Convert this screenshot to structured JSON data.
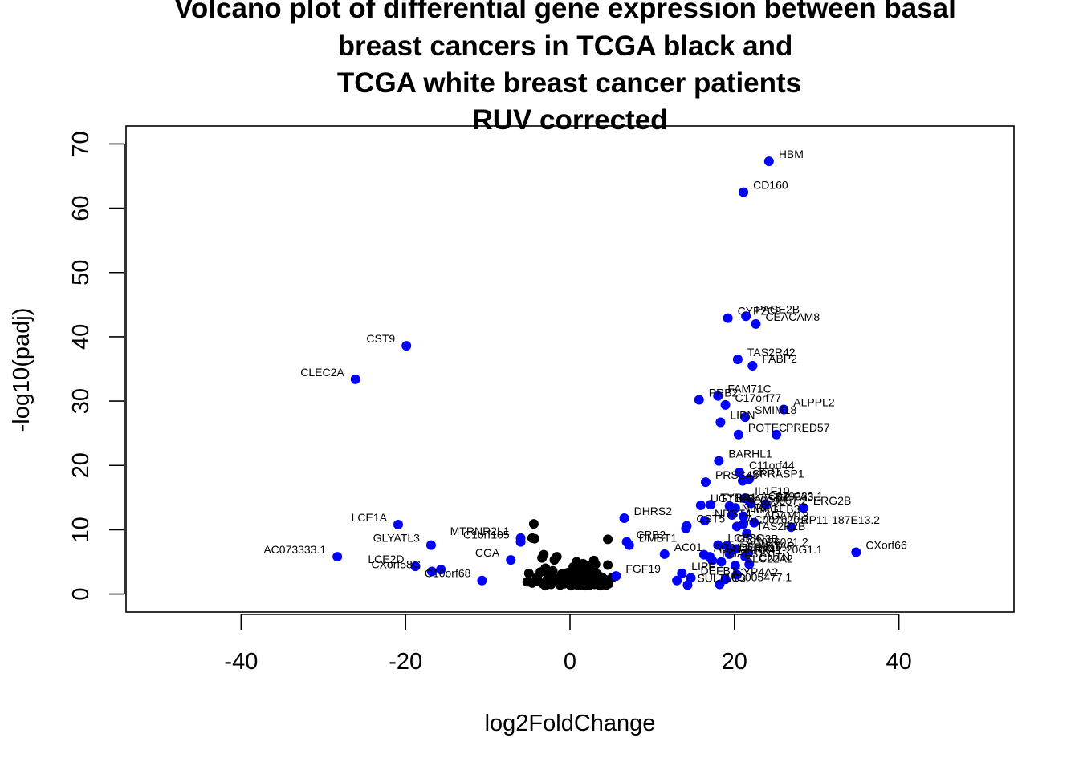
{
  "chart_data": {
    "type": "scatter",
    "title": [
      "Volcano plot of differential gene expression between basal",
      "breast cancers in TCGA black and",
      "TCGA white breast cancer patients",
      "RUV corrected"
    ],
    "xlabel": "log2FoldChange",
    "ylabel": "-log10(padj)",
    "xlim": [
      -54,
      54
    ],
    "ylim": [
      -2.8,
      72.8
    ],
    "xticks": [
      -40,
      -20,
      0,
      20,
      40
    ],
    "xtick_labels": [
      "-40",
      "-20",
      "0",
      "20",
      "40"
    ],
    "yticks": [
      0,
      10,
      20,
      30,
      40,
      50,
      60,
      70
    ],
    "ytick_labels": [
      "0",
      "10",
      "20",
      "30",
      "40",
      "50",
      "60",
      "70"
    ],
    "grid": false,
    "legend": "none",
    "colors": {
      "significant": "#0000ff",
      "not_significant": "#000000"
    },
    "series": [
      {
        "color": "#0000ff",
        "points": [
          {
            "x": 24.2,
            "y": 67.3,
            "label": "HBM"
          },
          {
            "x": 21.1,
            "y": 62.5,
            "label": "CD160"
          },
          {
            "x": 22.6,
            "y": 42.0,
            "label": "CEACAM8"
          },
          {
            "x": 21.4,
            "y": 43.2,
            "label": "PAGE2B"
          },
          {
            "x": 19.2,
            "y": 42.9,
            "label": "CYP2C9"
          },
          {
            "x": -19.9,
            "y": 38.6,
            "label": "CST9"
          },
          {
            "x": -26.1,
            "y": 33.4,
            "label": "CLEC2A"
          },
          {
            "x": 20.4,
            "y": 36.5,
            "label": "TAS2R42"
          },
          {
            "x": 22.2,
            "y": 35.5,
            "label": "FABP2"
          },
          {
            "x": 15.7,
            "y": 30.2,
            "label": "PRB2"
          },
          {
            "x": 18.0,
            "y": 30.8,
            "label": "FAM71C"
          },
          {
            "x": 18.9,
            "y": 29.4,
            "label": "C17orf77"
          },
          {
            "x": 26.0,
            "y": 28.7,
            "label": "ALPPL2"
          },
          {
            "x": 21.3,
            "y": 27.5,
            "label": "SMIM18"
          },
          {
            "x": 18.3,
            "y": 26.7,
            "label": "LIPN"
          },
          {
            "x": 20.5,
            "y": 24.8,
            "label": "POTEC"
          },
          {
            "x": 25.1,
            "y": 24.8,
            "label": "PRED57"
          },
          {
            "x": 18.1,
            "y": 20.7,
            "label": "BARHL1"
          },
          {
            "x": 20.6,
            "y": 18.9,
            "label": "C11orf44"
          },
          {
            "x": 21.8,
            "y": 17.9,
            "label": "KRT"
          },
          {
            "x": 21.0,
            "y": 17.6,
            "label": "SPRASP1"
          },
          {
            "x": 16.5,
            "y": 17.4,
            "label": "PRSS48"
          },
          {
            "x": 21.3,
            "y": 14.9,
            "label": "IL1F10"
          },
          {
            "x": 22.0,
            "y": 14.1,
            "label": "AC079333.1"
          },
          {
            "x": 23.8,
            "y": 14.0,
            "label": "BPIFA3"
          },
          {
            "x": 28.4,
            "y": 13.4,
            "label": "ERG2B"
          },
          {
            "x": 17.1,
            "y": 13.9,
            "label": "TYRP1"
          },
          {
            "x": 19.4,
            "y": 13.7,
            "label": "LGALS14"
          },
          {
            "x": 15.9,
            "y": 13.8,
            "label": "UGT1A8"
          },
          {
            "x": 20.1,
            "y": 13.4,
            "label": "AC009957.2"
          },
          {
            "x": 19.7,
            "y": 12.3,
            "label": "NLRP11"
          },
          {
            "x": 21.1,
            "y": 12.1,
            "label": "MAGEB3"
          },
          {
            "x": 16.4,
            "y": 11.4,
            "label": "NDST4"
          },
          {
            "x": 22.4,
            "y": 11.1,
            "label": "ADAM18"
          },
          {
            "x": 14.2,
            "y": 10.6,
            "label": "CST5"
          },
          {
            "x": 20.3,
            "y": 10.5,
            "label": "AC007620.2"
          },
          {
            "x": 26.9,
            "y": 10.4,
            "label": "RP11-187E13.2"
          },
          {
            "x": 14.1,
            "y": 10.2,
            "label": ""
          },
          {
            "x": 21.1,
            "y": 10.9,
            "label": ""
          },
          {
            "x": 6.6,
            "y": 11.8,
            "label": "DHRS2"
          },
          {
            "x": -20.9,
            "y": 10.8,
            "label": "LCE1A"
          },
          {
            "x": 34.8,
            "y": 6.5,
            "label": "CXorf66"
          },
          {
            "x": 21.5,
            "y": 9.4,
            "label": "TAS2R2B"
          },
          {
            "x": 18.0,
            "y": 7.6,
            "label": "LCE3C"
          },
          {
            "x": 19.1,
            "y": 7.5,
            "label": "GRIN3B"
          },
          {
            "x": 20.2,
            "y": 7.0,
            "label": "AC026021.2"
          },
          {
            "x": 21.7,
            "y": 6.4,
            "label": "KRTAP"
          },
          {
            "x": 16.3,
            "y": 6.1,
            "label": "AC015"
          },
          {
            "x": 17.0,
            "y": 5.8,
            "label": "MRGPRX4"
          },
          {
            "x": 19.4,
            "y": 6.2,
            "label": "DEFB11"
          },
          {
            "x": 21.3,
            "y": 5.8,
            "label": "RP11-20G1.1"
          },
          {
            "x": 17.3,
            "y": 5.2,
            "label": "LGALS13"
          },
          {
            "x": 18.4,
            "y": 5.0,
            "label": ""
          },
          {
            "x": 20.1,
            "y": 4.4,
            "label": "SLC22A2"
          },
          {
            "x": 21.8,
            "y": 4.6,
            "label": "CNTN"
          },
          {
            "x": 13.6,
            "y": 3.2,
            "label": "LIPF"
          },
          {
            "x": 14.7,
            "y": 2.5,
            "label": "DEFB1"
          },
          {
            "x": 13.0,
            "y": 2.1,
            "label": ""
          },
          {
            "x": 14.3,
            "y": 1.4,
            "label": "SULT1C3"
          },
          {
            "x": 18.2,
            "y": 1.5,
            "label": "AC005477.1"
          },
          {
            "x": 18.9,
            "y": 2.3,
            "label": "CYP4A2"
          },
          {
            "x": 20.3,
            "y": 3.0,
            "label": ""
          },
          {
            "x": 11.5,
            "y": 6.2,
            "label": "AC01"
          },
          {
            "x": 6.9,
            "y": 8.1,
            "label": "CPB2"
          },
          {
            "x": 7.2,
            "y": 7.6,
            "label": "DMBT1"
          },
          {
            "x": 5.6,
            "y": 2.8,
            "label": "FGF19"
          },
          {
            "x": -6.0,
            "y": 8.7,
            "label": "MTRNR2L1"
          },
          {
            "x": -6.0,
            "y": 8.1,
            "label": "C1orf105"
          },
          {
            "x": -7.2,
            "y": 5.3,
            "label": "CGA"
          },
          {
            "x": -16.9,
            "y": 7.6,
            "label": "GLYATL3"
          },
          {
            "x": -28.3,
            "y": 5.8,
            "label": "AC073333.1"
          },
          {
            "x": -18.8,
            "y": 4.3,
            "label": "LCE2D"
          },
          {
            "x": -16.8,
            "y": 3.5,
            "label": "CXorf58C"
          },
          {
            "x": -15.7,
            "y": 3.8,
            "label": ""
          },
          {
            "x": -10.7,
            "y": 2.1,
            "label": "C10orf68"
          }
        ]
      },
      {
        "color": "#000000",
        "points": [
          {
            "x": -4.4,
            "y": 10.9
          },
          {
            "x": -4.6,
            "y": 8.7
          },
          {
            "x": -4.3,
            "y": 8.6
          },
          {
            "x": 4.6,
            "y": 8.5
          },
          {
            "x": -3.2,
            "y": 6.1
          },
          {
            "x": -3.4,
            "y": 5.6
          },
          {
            "x": -1.9,
            "y": 5.3
          },
          {
            "x": -1.6,
            "y": 5.8
          },
          {
            "x": 0.8,
            "y": 5.0
          },
          {
            "x": 1.6,
            "y": 4.7
          },
          {
            "x": 2.4,
            "y": 4.4
          },
          {
            "x": 2.9,
            "y": 5.2
          },
          {
            "x": 3.1,
            "y": 4.6
          },
          {
            "x": 4.6,
            "y": 4.5
          },
          {
            "x": -5.0,
            "y": 3.2
          },
          {
            "x": -4.0,
            "y": 2.6
          },
          {
            "x": -3.6,
            "y": 3.4
          },
          {
            "x": -3.0,
            "y": 4.0
          },
          {
            "x": -2.6,
            "y": 2.9
          },
          {
            "x": -2.1,
            "y": 3.6
          },
          {
            "x": -1.5,
            "y": 2.4
          },
          {
            "x": -1.0,
            "y": 3.1
          },
          {
            "x": -0.5,
            "y": 2.1
          },
          {
            "x": -0.2,
            "y": 1.8
          },
          {
            "x": 0.3,
            "y": 2.6
          },
          {
            "x": 0.7,
            "y": 3.5
          },
          {
            "x": 1.0,
            "y": 2.2
          },
          {
            "x": 1.3,
            "y": 3.9
          },
          {
            "x": 1.6,
            "y": 1.6
          },
          {
            "x": 1.9,
            "y": 3.3
          },
          {
            "x": 2.2,
            "y": 2.4
          },
          {
            "x": 2.6,
            "y": 3.8
          },
          {
            "x": 2.9,
            "y": 2.0
          },
          {
            "x": 3.3,
            "y": 3.1
          },
          {
            "x": 3.6,
            "y": 1.7
          },
          {
            "x": 3.9,
            "y": 2.6
          },
          {
            "x": 4.3,
            "y": 2.2
          },
          {
            "x": 4.7,
            "y": 1.6
          },
          {
            "x": 5.1,
            "y": 2.5
          },
          {
            "x": -5.2,
            "y": 1.9
          },
          {
            "x": -4.6,
            "y": 1.7
          },
          {
            "x": -3.9,
            "y": 2.0
          },
          {
            "x": -3.3,
            "y": 1.6
          },
          {
            "x": -2.8,
            "y": 2.2
          },
          {
            "x": -2.3,
            "y": 1.5
          },
          {
            "x": -1.8,
            "y": 1.9
          },
          {
            "x": -1.2,
            "y": 1.4
          },
          {
            "x": -0.7,
            "y": 1.6
          },
          {
            "x": 0.1,
            "y": 1.3
          },
          {
            "x": 0.5,
            "y": 1.5
          },
          {
            "x": 0.9,
            "y": 1.4
          },
          {
            "x": 1.2,
            "y": 1.8
          },
          {
            "x": 1.5,
            "y": 2.9
          },
          {
            "x": 1.8,
            "y": 1.3
          },
          {
            "x": 2.1,
            "y": 1.7
          },
          {
            "x": 2.4,
            "y": 1.4
          },
          {
            "x": 2.7,
            "y": 2.7
          },
          {
            "x": 3.0,
            "y": 1.5
          },
          {
            "x": 3.4,
            "y": 2.3
          },
          {
            "x": 3.7,
            "y": 1.3
          },
          {
            "x": 4.0,
            "y": 1.8
          },
          {
            "x": 4.4,
            "y": 1.4
          },
          {
            "x": -3.0,
            "y": 1.3
          },
          {
            "x": -2.0,
            "y": 2.6
          },
          {
            "x": -1.3,
            "y": 2.3
          },
          {
            "x": -0.9,
            "y": 1.9
          },
          {
            "x": 0.6,
            "y": 2.0
          },
          {
            "x": 1.1,
            "y": 2.6
          },
          {
            "x": 1.4,
            "y": 1.4
          },
          {
            "x": 2.0,
            "y": 2.0
          },
          {
            "x": 2.5,
            "y": 2.9
          },
          {
            "x": 3.2,
            "y": 1.9
          },
          {
            "x": 3.5,
            "y": 2.8
          },
          {
            "x": 0.4,
            "y": 4.2
          },
          {
            "x": 1.7,
            "y": 4.1
          },
          {
            "x": 2.3,
            "y": 3.6
          },
          {
            "x": -0.3,
            "y": 3.3
          }
        ]
      }
    ]
  }
}
